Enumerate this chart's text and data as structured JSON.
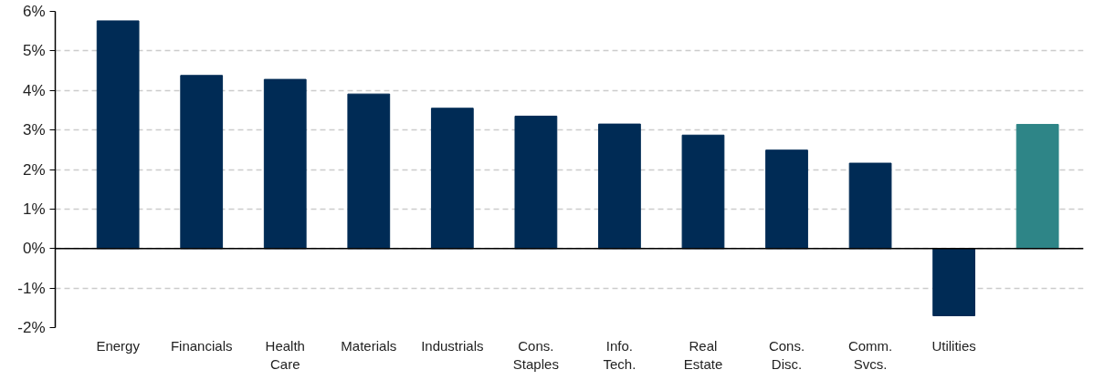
{
  "chart_data": {
    "type": "bar",
    "categories": [
      "Energy",
      "Financials",
      "Health\nCare",
      "Materials",
      "Industrials",
      "Cons.\nStaples",
      "Info.\nTech.",
      "Real\nEstate",
      "Cons.\nDisc.",
      "Comm.\nSvcs.",
      "Utilities",
      null
    ],
    "values": [
      5.76,
      4.38,
      4.28,
      3.91,
      3.55,
      3.35,
      3.15,
      2.87,
      2.49,
      2.16,
      -1.7,
      3.14
    ],
    "colors": [
      "#002b55",
      "#002b55",
      "#002b55",
      "#002b55",
      "#002b55",
      "#002b55",
      "#002b55",
      "#002b55",
      "#002b55",
      "#002b55",
      "#002b55",
      "#2e8587"
    ],
    "ylim": [
      -2,
      6
    ],
    "yticks": [
      {
        "value": -2,
        "label": "-2%"
      },
      {
        "value": -1,
        "label": "-1%"
      },
      {
        "value": 0,
        "label": "0%"
      },
      {
        "value": 1,
        "label": "1%"
      },
      {
        "value": 2,
        "label": "2%"
      },
      {
        "value": 3,
        "label": "3%"
      },
      {
        "value": 4,
        "label": "4%"
      },
      {
        "value": 5,
        "label": "5%"
      },
      {
        "value": 6,
        "label": "6%"
      }
    ],
    "grid": "y"
  }
}
